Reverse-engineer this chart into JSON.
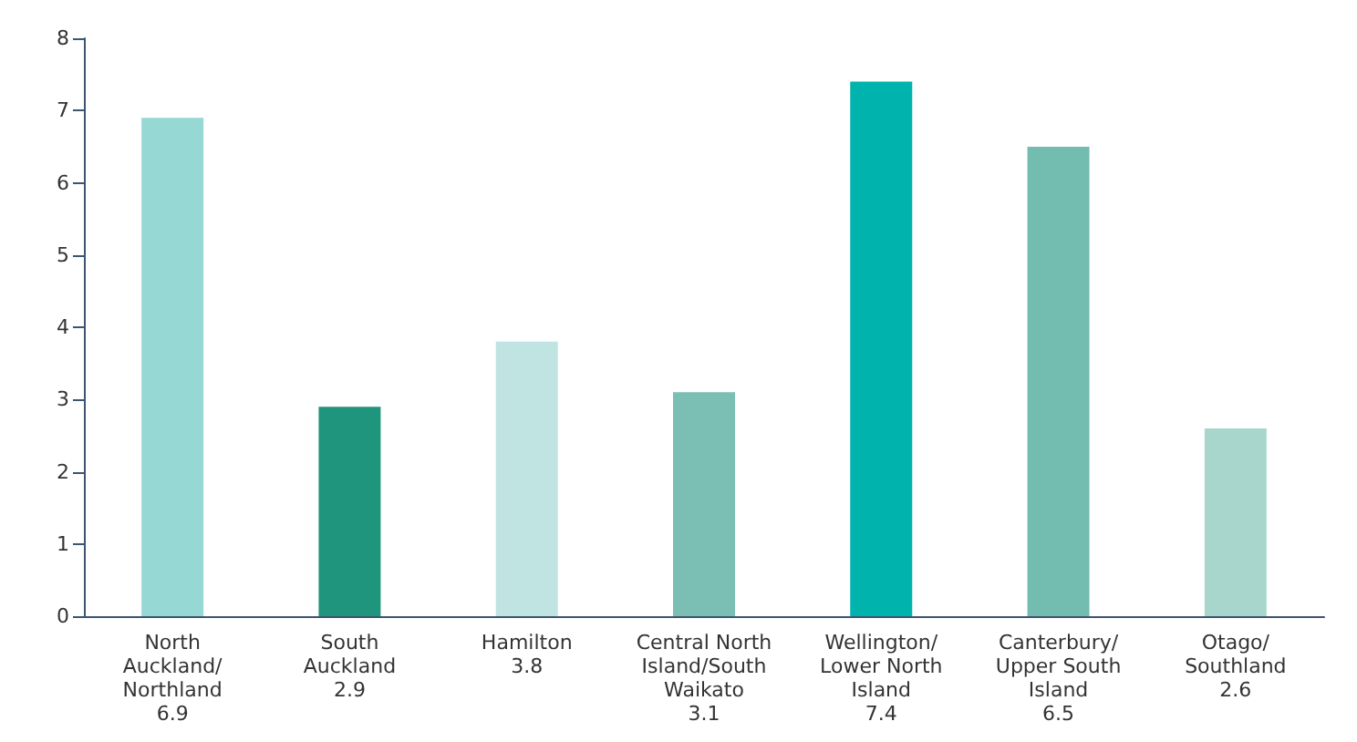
{
  "chart_data": {
    "type": "bar",
    "categories": [
      "North Auckland/ Northland 6.9",
      "South Auckland 2.9",
      "Hamilton 3.8",
      "Central North Island/South Waikato 3.1",
      "Wellington/ Lower North Island 7.4",
      "Canterbury/ Upper South Island 6.5",
      "Otago/ Southland 2.6"
    ],
    "values": [
      6.9,
      2.9,
      3.8,
      3.1,
      7.4,
      6.5,
      2.6
    ],
    "colors": [
      "#96d8d3",
      "#1f957d",
      "#c0e4e2",
      "#7bbfb4",
      "#00b3ad",
      "#72bcb0",
      "#a8d6cc"
    ],
    "ylim": [
      0,
      8
    ],
    "yticks": [
      0,
      1,
      2,
      3,
      4,
      5,
      6,
      7,
      8
    ],
    "grid": false
  }
}
